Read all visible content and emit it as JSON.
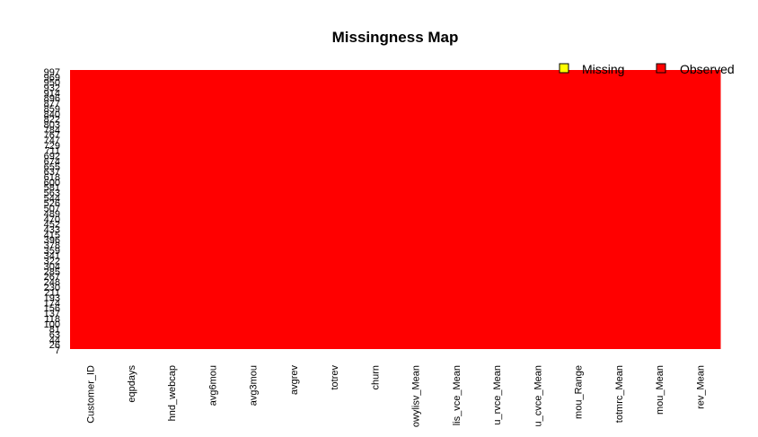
{
  "chart_data": {
    "type": "heatmap",
    "title": "Missingness Map",
    "colors": {
      "missing": "#ffff00",
      "observed": "#ff0000"
    },
    "legend": {
      "placement": "top-right",
      "items": [
        {
          "label": "Missing",
          "color": "#ffff00"
        },
        {
          "label": "Observed",
          "color": "#ff0000"
        }
      ]
    },
    "columns": [
      "Customer_ID",
      "eqpdays",
      "hnd_webcap",
      "avg6mou",
      "avg3mou",
      "avgrev",
      "totrev",
      "churn",
      "owylisv_Mean",
      "lis_vce_Mean",
      "u_rvce_Mean",
      "u_cvce_Mean",
      "mou_Range",
      "totmrc_Mean",
      "mou_Mean",
      "rev_Mean"
    ],
    "row_labels": [
      "997",
      "969",
      "950",
      "932",
      "914",
      "896",
      "877",
      "859",
      "840",
      "822",
      "803",
      "784",
      "767",
      "747",
      "729",
      "711",
      "692",
      "674",
      "655",
      "637",
      "618",
      "600",
      "581",
      "563",
      "544",
      "526",
      "507",
      "489",
      "470",
      "452",
      "433",
      "415",
      "396",
      "378",
      "359",
      "341",
      "322",
      "304",
      "285",
      "267",
      "248",
      "230",
      "211",
      "193",
      "174",
      "156",
      "137",
      "118",
      "100",
      "81",
      "63",
      "44",
      "26",
      "7"
    ],
    "missing_fraction_per_column": [
      0,
      0,
      0,
      0,
      0,
      0,
      0,
      0,
      0,
      0,
      0,
      0,
      0,
      0,
      0,
      0
    ]
  }
}
